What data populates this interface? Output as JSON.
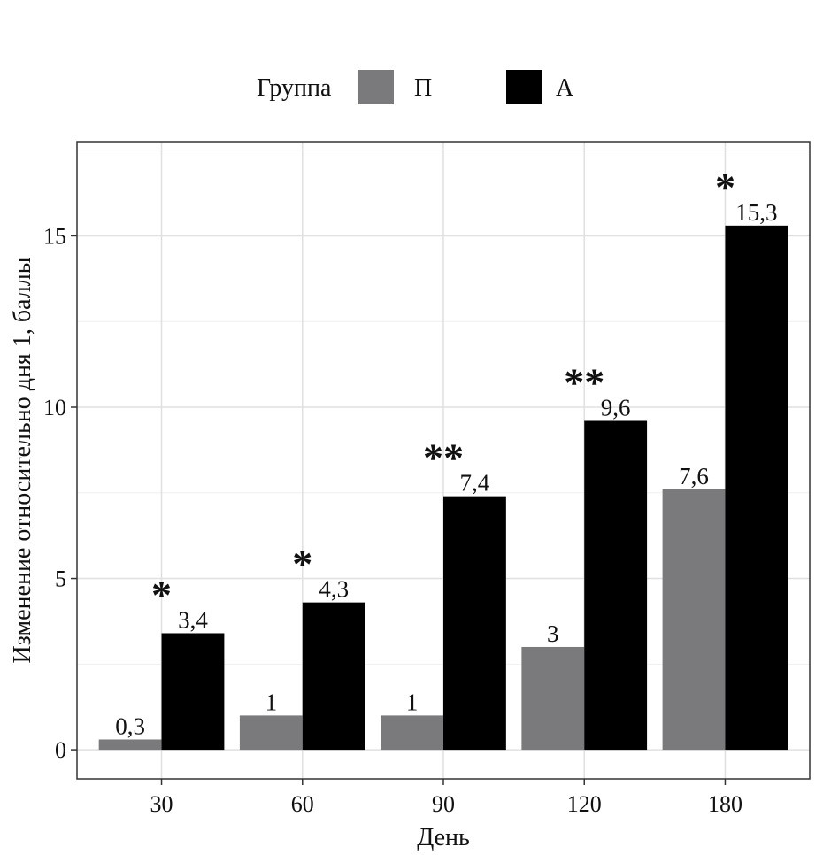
{
  "chart_data": {
    "type": "bar",
    "title": "",
    "xlabel": "День",
    "ylabel": "Изменение относительно дня 1, баллы",
    "categories": [
      "30",
      "60",
      "90",
      "120",
      "180"
    ],
    "series": [
      {
        "name": "П",
        "color": "#7a7a7c",
        "values": [
          0.3,
          1,
          1,
          3,
          7.6
        ],
        "labels": [
          "0,3",
          "1",
          "1",
          "3",
          "7,6"
        ]
      },
      {
        "name": "А",
        "color": "#000000",
        "values": [
          3.4,
          4.3,
          7.4,
          9.6,
          15.3
        ],
        "labels": [
          "3,4",
          "4,3",
          "7,4",
          "9,6",
          "15,3"
        ]
      }
    ],
    "significance": [
      "*",
      "*",
      "**",
      "**",
      "*"
    ],
    "ylim": [
      -0.85,
      17.75
    ],
    "yticks": [
      0,
      5,
      10,
      15
    ],
    "grid": true,
    "legend": {
      "title": "Группа",
      "position": "top"
    }
  }
}
